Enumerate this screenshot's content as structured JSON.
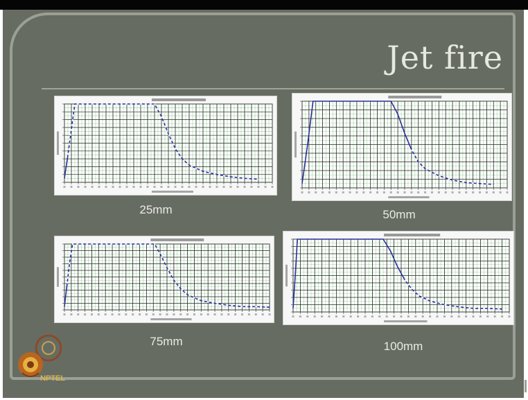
{
  "slide": {
    "title": "Jet fire",
    "logo_text": "NPTEL"
  },
  "chart_data": [
    {
      "type": "line",
      "caption": "25mm",
      "ylim": [
        0,
        1
      ],
      "xlim": [
        0,
        30
      ],
      "grid": true,
      "series": [
        {
          "x": [
            0,
            0.5,
            1.5,
            13,
            14,
            15,
            16,
            17,
            18,
            20,
            22,
            24,
            26,
            28
          ],
          "y": [
            0.05,
            0.35,
            1.0,
            1.0,
            0.84,
            0.62,
            0.43,
            0.3,
            0.22,
            0.14,
            0.1,
            0.07,
            0.05,
            0.04
          ]
        }
      ]
    },
    {
      "type": "line",
      "caption": "50mm",
      "ylim": [
        0,
        1
      ],
      "xlim": [
        0,
        30
      ],
      "grid": true,
      "series": [
        {
          "x": [
            0,
            0.8,
            1.6,
            13,
            14,
            15,
            16,
            17,
            18,
            20,
            22,
            24,
            26,
            28
          ],
          "y": [
            0.05,
            0.5,
            1.0,
            1.0,
            0.85,
            0.63,
            0.44,
            0.3,
            0.22,
            0.14,
            0.09,
            0.06,
            0.05,
            0.04
          ]
        }
      ]
    },
    {
      "type": "line",
      "caption": "75mm",
      "ylim": [
        0,
        1
      ],
      "xlim": [
        0,
        30
      ],
      "grid": true,
      "series": [
        {
          "x": [
            0,
            0.4,
            0.8,
            1.2,
            13.2,
            14,
            15,
            16,
            17,
            18,
            20,
            22,
            24,
            26,
            28,
            30
          ],
          "y": [
            0.05,
            0.4,
            0.75,
            1.0,
            1.0,
            0.85,
            0.64,
            0.45,
            0.32,
            0.23,
            0.14,
            0.1,
            0.07,
            0.05,
            0.05,
            0.04
          ]
        }
      ]
    },
    {
      "type": "line",
      "caption": "100mm",
      "ylim": [
        0,
        1
      ],
      "xlim": [
        0,
        30
      ],
      "grid": true,
      "series": [
        {
          "x": [
            0,
            0.3,
            0.6,
            12.5,
            13.5,
            14.5,
            15.5,
            16.5,
            17.5,
            19,
            21,
            23,
            25,
            27,
            29
          ],
          "y": [
            0.05,
            0.5,
            1.0,
            1.0,
            0.84,
            0.62,
            0.44,
            0.31,
            0.22,
            0.15,
            0.1,
            0.07,
            0.05,
            0.05,
            0.04
          ]
        }
      ]
    }
  ],
  "colors": {
    "slide_bg": "#676c63",
    "plot_bg": "#f6f7f6",
    "grid_minor": "#9ed59e",
    "grid_major": "#2b2b2b",
    "series": "#2a2f9a",
    "caption": "#e9ebe6"
  },
  "icons": [
    "nptel-logo-icon"
  ]
}
